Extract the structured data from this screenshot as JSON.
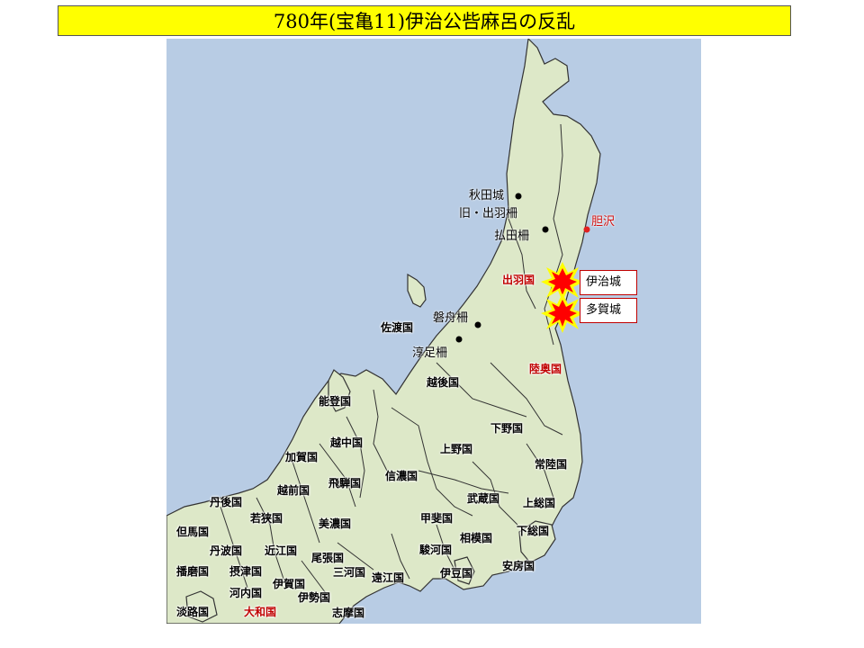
{
  "title": "780年(宝亀11)伊治公呰麻呂の反乱",
  "colors": {
    "sea": "#b8cce4",
    "land": "#dde8c8",
    "border": "#333333",
    "title_bg": "#ffff00",
    "accent": "#c00000"
  },
  "sites": {
    "akita": "秋田城",
    "old_dewa": "旧・出羽柵",
    "hotta": "払田柵",
    "isawa": "胆沢",
    "iwafune": "磐舟柵",
    "nutari": "淳足柵"
  },
  "events": {
    "iji": "伊治城",
    "taga": "多賀城"
  },
  "provinces": {
    "dewa": "出羽国",
    "mutsu": "陸奥国",
    "sado": "佐渡国",
    "echigo": "越後国",
    "noto": "能登国",
    "etchu": "越中国",
    "kaga": "加賀国",
    "hida": "飛騨国",
    "echizen": "越前国",
    "shinano": "信濃国",
    "kozuke": "上野国",
    "shimotsuke": "下野国",
    "hitachi": "常陸国",
    "musashi": "武蔵国",
    "kazusa": "上総国",
    "shimosa": "下総国",
    "awa": "安房国",
    "sagami": "相模国",
    "kai": "甲斐国",
    "suruga": "駿河国",
    "izu": "伊豆国",
    "totomi": "遠江国",
    "mikawa": "三河国",
    "owari": "尾張国",
    "mino": "美濃国",
    "omi": "近江国",
    "wakasa": "若狭国",
    "tango": "丹後国",
    "tajima": "但馬国",
    "tamba": "丹波国",
    "harima": "播磨国",
    "settsu": "摂津国",
    "kawachi": "河内国",
    "iga": "伊賀国",
    "ise": "伊勢国",
    "shima": "志摩国",
    "yamato": "大和国",
    "awaji": "淡路国"
  }
}
